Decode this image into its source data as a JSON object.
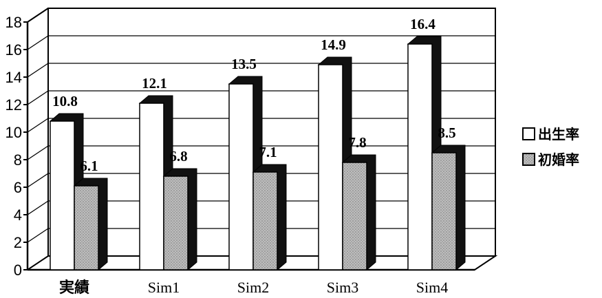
{
  "chart_data": {
    "type": "bar",
    "categories": [
      "実績",
      "Sim1",
      "Sim2",
      "Sim3",
      "Sim4"
    ],
    "series": [
      {
        "name": "出生率",
        "values": [
          10.8,
          12.1,
          13.5,
          14.9,
          16.4
        ],
        "labels": [
          "10.8",
          "12.1",
          "13.5",
          "14.9",
          "16.4"
        ],
        "color": "#ffffff"
      },
      {
        "name": "初婚率",
        "values": [
          6.1,
          6.8,
          7.1,
          7.8,
          8.5
        ],
        "labels": [
          "6.1",
          "6.8",
          "7.1",
          "7.8",
          "8.5"
        ],
        "color": "#b4b4b4"
      }
    ],
    "yticks": [
      "0",
      "2",
      "4",
      "6",
      "8",
      "10",
      "12",
      "14",
      "16",
      "18"
    ],
    "ylim": [
      0,
      18
    ],
    "grid": true,
    "legend": "right",
    "style": "3d-shadowed-bars",
    "shadow_color": "#111111"
  }
}
